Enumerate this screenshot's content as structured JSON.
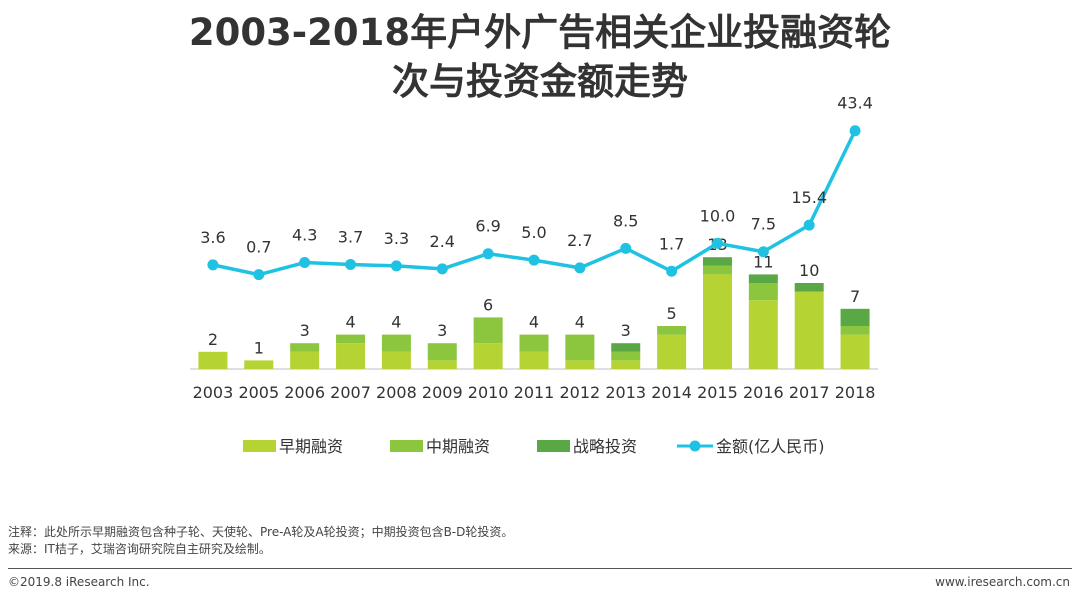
{
  "title": {
    "line1": "2003-2018年户外广告相关企业投融资轮",
    "line2": "次与投资金额走势"
  },
  "chart_data": {
    "type": "bar",
    "categories": [
      "2003",
      "2005",
      "2006",
      "2007",
      "2008",
      "2009",
      "2010",
      "2011",
      "2012",
      "2013",
      "2014",
      "2015",
      "2016",
      "2017",
      "2018"
    ],
    "series": [
      {
        "name": "早期融资",
        "color": "#b5d433",
        "values": [
          2,
          1,
          2,
          3,
          2,
          1,
          3,
          2,
          1,
          1,
          4,
          11,
          8,
          9,
          4
        ]
      },
      {
        "name": "中期融资",
        "color": "#8cc63f",
        "values": [
          0,
          0,
          1,
          1,
          2,
          2,
          3,
          2,
          3,
          1,
          1,
          1,
          2,
          0,
          1
        ]
      },
      {
        "name": "战略投资",
        "color": "#5aa845",
        "values": [
          0,
          0,
          0,
          0,
          0,
          0,
          0,
          0,
          0,
          1,
          0,
          1,
          1,
          1,
          2
        ]
      }
    ],
    "bar_totals": [
      2,
      1,
      3,
      4,
      4,
      3,
      6,
      4,
      4,
      3,
      5,
      13,
      11,
      10,
      7
    ],
    "line_series": {
      "name": "金额(亿人民币)",
      "color": "#1fc2e3",
      "values": [
        3.6,
        0.7,
        4.3,
        3.7,
        3.3,
        2.4,
        6.9,
        5.0,
        2.7,
        8.5,
        1.7,
        10.0,
        7.5,
        15.4,
        43.4
      ],
      "labels": [
        "3.6",
        "0.7",
        "4.3",
        "3.7",
        "3.3",
        "2.4",
        "6.9",
        "5.0",
        "2.7",
        "8.5",
        "1.7",
        "10.0",
        "7.5",
        "15.4",
        "43.4"
      ]
    },
    "legend_position": "bottom",
    "grid": false
  },
  "notes": {
    "line1": "注释：此处所示早期融资包含种子轮、天使轮、Pre-A轮及A轮投资；中期投资包含B-D轮投资。",
    "line2": "来源：IT桔子，艾瑞咨询研究院自主研究及绘制。"
  },
  "footer": {
    "left": "©2019.8 iResearch Inc.",
    "right": "www.iresearch.com.cn"
  }
}
